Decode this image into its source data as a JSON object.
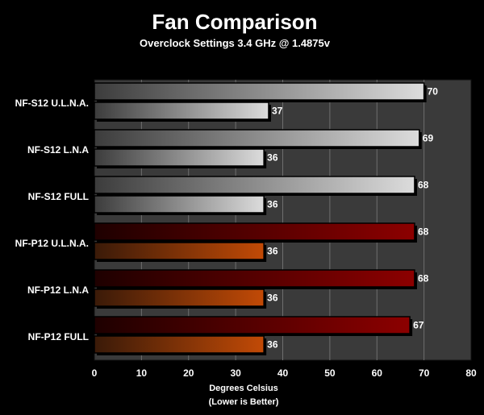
{
  "chart_data": {
    "type": "bar",
    "orientation": "horizontal",
    "title": "Fan Comparison",
    "subtitle": "Overclock Settings 3.4 GHz @ 1.4875v",
    "xlabel_line1": "Degrees Celsius",
    "xlabel_line2": "(Lower is Better)",
    "xlim": [
      0,
      80
    ],
    "xticks": [
      0,
      10,
      20,
      30,
      40,
      50,
      60,
      70,
      80
    ],
    "grid": true,
    "categories": [
      "NF-S12 U.L.N.A.",
      "NF-S12 L.N.A",
      "NF-S12 FULL",
      "NF-P12 U.L.N.A.",
      "NF-P12 L.N.A",
      "NF-P12 FULL"
    ],
    "series": [
      {
        "values": [
          70,
          69,
          68,
          68,
          68,
          67
        ]
      },
      {
        "values": [
          37,
          36,
          36,
          36,
          36,
          36
        ]
      }
    ],
    "colors": {
      "background": "#000000",
      "plot_background": "#3a3a3a",
      "grid": "#6e6e6e",
      "silver_light": "#dcdcdc",
      "silver_dark": "#3c3c3c",
      "red_light": "#8c0000",
      "red_dark": "#1e0000",
      "orange_light": "#c24a06",
      "orange_dark": "#3a1a08"
    }
  }
}
